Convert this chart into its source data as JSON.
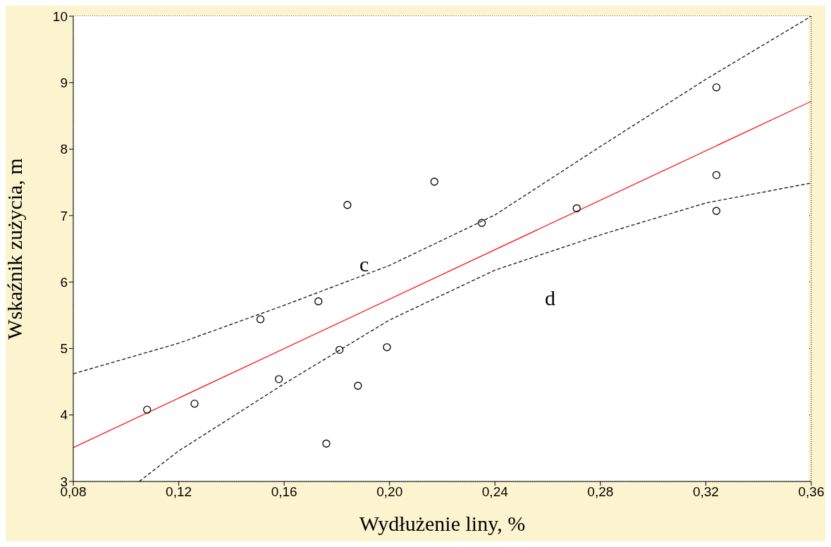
{
  "chart_data": {
    "type": "scatter",
    "xlabel": "Wydłużenie liny, %",
    "ylabel": "Wskaźnik zużycia, m",
    "xlim": [
      0.08,
      0.36
    ],
    "xticks": [
      {
        "value": 0.08,
        "label": "0,08"
      },
      {
        "value": 0.12,
        "label": "0,12"
      },
      {
        "value": 0.16,
        "label": "0,16"
      },
      {
        "value": 0.2,
        "label": "0,20"
      },
      {
        "value": 0.24,
        "label": "0,24"
      },
      {
        "value": 0.28,
        "label": "0,28"
      },
      {
        "value": 0.32,
        "label": "0,32"
      },
      {
        "value": 0.36,
        "label": "0,36"
      }
    ],
    "ylim": [
      3,
      10
    ],
    "yticks": [
      3,
      4,
      5,
      6,
      7,
      8,
      9,
      10
    ],
    "grid": true,
    "marker": "circle",
    "series": [
      {
        "color": "#000000",
        "x": [
          0.108,
          0.126,
          0.151,
          0.158,
          0.173,
          0.176,
          0.181,
          0.184,
          0.188,
          0.199,
          0.217,
          0.235,
          0.271,
          0.324,
          0.324,
          0.324
        ],
        "values": [
          4.08,
          4.17,
          5.44,
          4.54,
          5.71,
          3.57,
          4.98,
          7.16,
          4.44,
          5.02,
          7.51,
          6.89,
          7.11,
          8.93,
          7.61,
          7.07
        ]
      },
      {
        "type": "line",
        "marker": "none",
        "color": "#ff0000",
        "line_style": "solid",
        "x": [
          0.08,
          0.36
        ],
        "values": [
          3.51,
          8.72
        ]
      },
      {
        "type": "line",
        "marker": "none",
        "color": "#000000",
        "line_style": "dashed",
        "x": [
          0.08,
          0.12,
          0.16,
          0.2,
          0.24,
          0.28,
          0.32,
          0.36
        ],
        "values": [
          4.62,
          5.08,
          5.65,
          6.25,
          7.01,
          8.04,
          9.05,
          10
        ]
      },
      {
        "type": "line",
        "marker": "none",
        "color": "#000000",
        "line_style": "dashed",
        "x": [
          0.105,
          0.12,
          0.16,
          0.2,
          0.24,
          0.28,
          0.32,
          0.36
        ],
        "values": [
          3,
          3.46,
          4.47,
          5.43,
          6.18,
          6.71,
          7.19,
          7.49
        ]
      }
    ],
    "annotations": [
      "c",
      "d"
    ]
  }
}
